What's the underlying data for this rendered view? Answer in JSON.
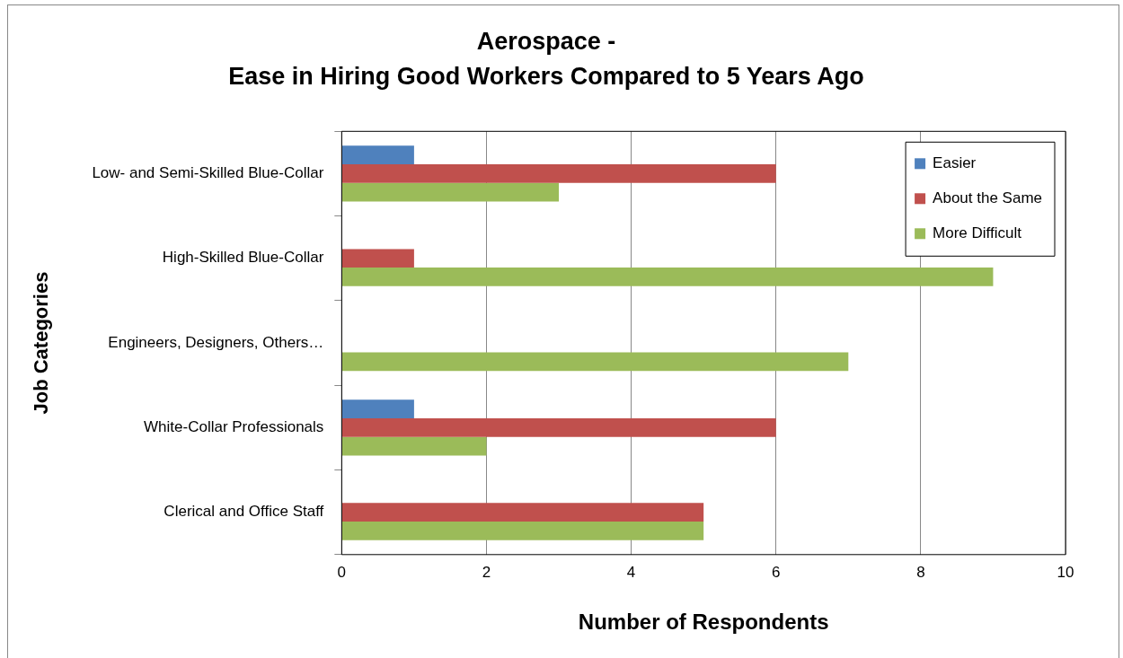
{
  "chart_data": {
    "type": "bar",
    "orientation": "horizontal",
    "title": "Aerospace -\nEase in Hiring Good Workers Compared to 5 Years Ago",
    "xlabel": "Number of Respondents",
    "ylabel": "Job Categories",
    "categories": [
      "Low- and Semi-Skilled Blue-Collar",
      "High-Skilled Blue-Collar",
      "Engineers, Designers, Others…",
      "White-Collar Professionals",
      "Clerical and Office Staff"
    ],
    "series": [
      {
        "name": "Easier",
        "color": "#4f81bd",
        "values": [
          1,
          0,
          0,
          1,
          0
        ]
      },
      {
        "name": "About the Same",
        "color": "#c0504d",
        "values": [
          6,
          1,
          0,
          6,
          5
        ]
      },
      {
        "name": "More Difficult",
        "color": "#9bbb59",
        "values": [
          3,
          9,
          7,
          2,
          5
        ]
      }
    ],
    "xlim": [
      0,
      10
    ],
    "xticks": [
      0,
      2,
      4,
      6,
      8,
      10
    ],
    "grid": "x",
    "legend": "top right"
  }
}
